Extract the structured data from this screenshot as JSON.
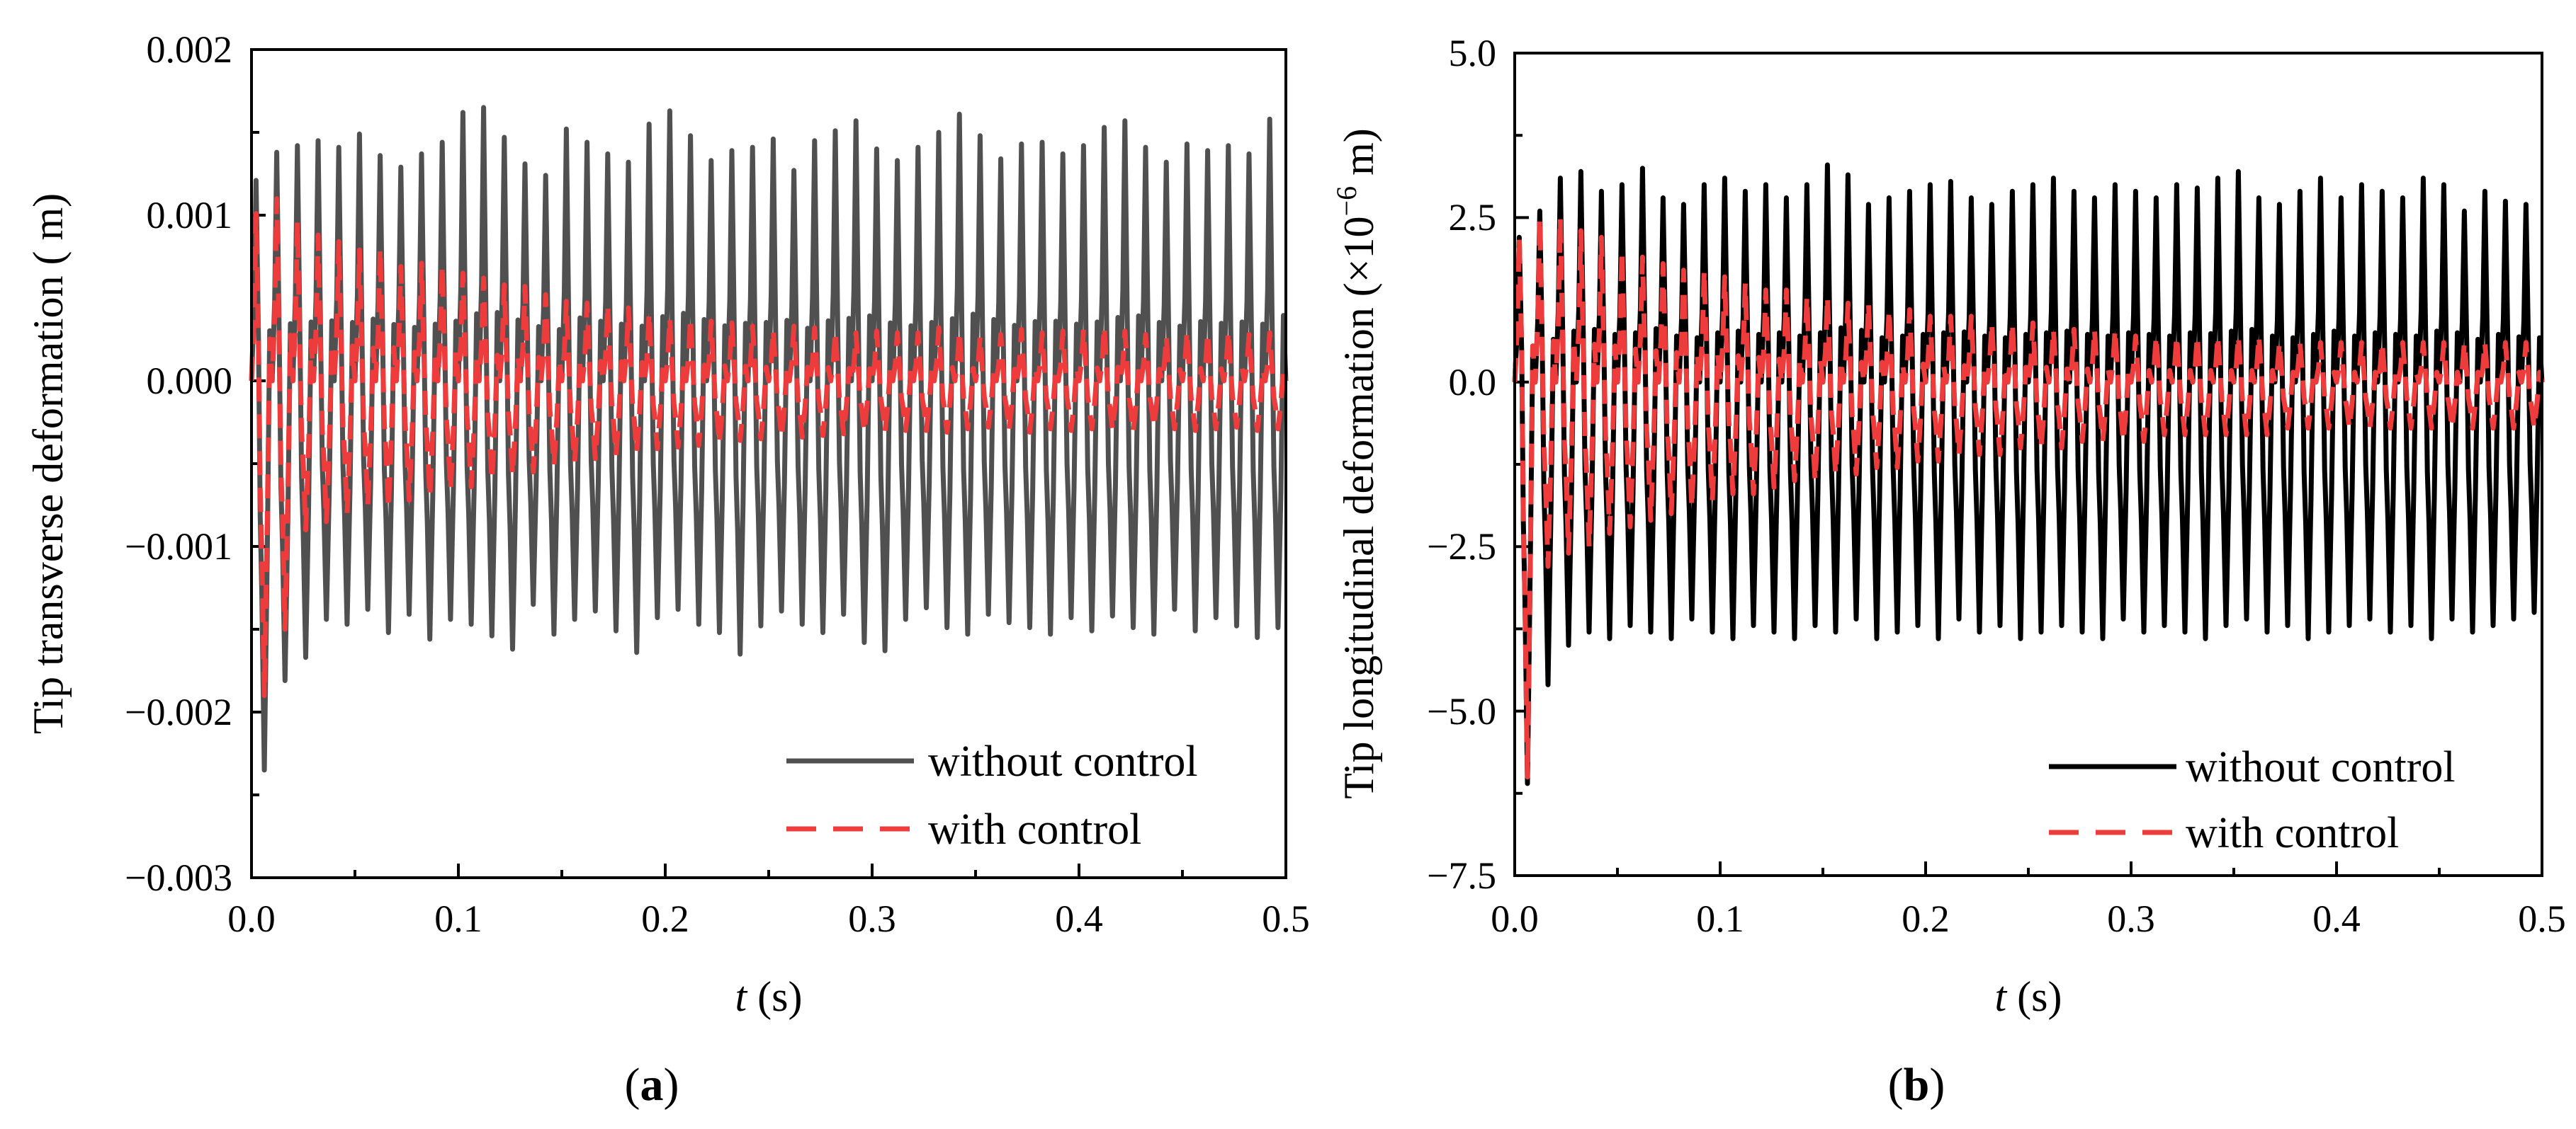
{
  "chart_data": [
    {
      "id": "a",
      "type": "line",
      "panel_label": {
        "open": "(",
        "letter": "a",
        "close": ")"
      },
      "xlabel": {
        "italic": "t",
        "unit": " (s)"
      },
      "ylabel": "Tip transverse deformation ( m)",
      "xlim": [
        0.0,
        0.5
      ],
      "ylim": [
        -0.003,
        0.002
      ],
      "xticks": [
        0.0,
        0.1,
        0.2,
        0.3,
        0.4,
        0.5
      ],
      "xtick_labels": [
        "0.0",
        "0.1",
        "0.2",
        "0.3",
        "0.4",
        "0.5"
      ],
      "yticks": [
        -0.003,
        -0.002,
        -0.001,
        0.0,
        0.001,
        0.002
      ],
      "ytick_labels": [
        "−0.003",
        "−0.002",
        "−0.001",
        "0.000",
        "0.001",
        "0.002"
      ],
      "legend_position": "bottom-right",
      "series": [
        {
          "name": "without control",
          "color": "#505050",
          "style": "solid",
          "peaks": [
            0.00121,
            0.00138,
            0.00142,
            0.00145,
            0.00141,
            0.00149,
            0.00136,
            0.00129,
            0.00137,
            0.00144,
            0.00162,
            0.00165,
            0.00147,
            0.00131,
            0.00124,
            0.00152,
            0.00144,
            0.00137,
            0.00132,
            0.00155,
            0.00163,
            0.00148,
            0.00133,
            0.00139,
            0.00141,
            0.00146,
            0.00127,
            0.00145,
            0.00151,
            0.00157,
            0.0014,
            0.00133,
            0.00141,
            0.0015,
            0.00161,
            0.00148,
            0.00134,
            0.00143,
            0.00144,
            0.00137,
            0.00142,
            0.00153,
            0.00157,
            0.00141,
            0.00132,
            0.00143,
            0.00139,
            0.00142,
            0.00137,
            0.00158
          ],
          "troughs": [
            -0.00235,
            -0.00181,
            -0.00167,
            -0.00144,
            -0.00147,
            -0.00138,
            -0.00152,
            -0.00141,
            -0.00156,
            -0.00144,
            -0.00147,
            -0.00154,
            -0.00162,
            -0.00135,
            -0.00153,
            -0.00144,
            -0.00139,
            -0.00151,
            -0.00164,
            -0.00143,
            -0.00138,
            -0.00147,
            -0.00152,
            -0.00165,
            -0.00148,
            -0.00139,
            -0.00147,
            -0.00152,
            -0.00141,
            -0.00158,
            -0.00163,
            -0.00144,
            -0.00137,
            -0.00149,
            -0.00153,
            -0.00141,
            -0.00146,
            -0.00149,
            -0.00153,
            -0.00143,
            -0.00151,
            -0.00142,
            -0.00149,
            -0.00153,
            -0.00138,
            -0.00151,
            -0.00143,
            -0.00148,
            -0.00155,
            -0.00149
          ]
        },
        {
          "name": "with control",
          "color": "#ee3b3b",
          "style": "dashed",
          "peaks": [
            0.00101,
            0.0011,
            0.00096,
            0.00088,
            0.00084,
            0.00079,
            0.0008,
            0.00069,
            0.00071,
            0.0007,
            0.00065,
            0.00062,
            0.00058,
            0.00057,
            0.00052,
            0.00048,
            0.00047,
            0.00046,
            0.00044,
            0.00041,
            0.00038,
            0.00038,
            0.00036,
            0.00035,
            0.00033,
            0.00031,
            0.00033,
            0.00032,
            0.0003,
            0.00029,
            0.0003,
            0.00029,
            0.00029,
            0.00032,
            0.0003,
            0.00027,
            0.00028,
            0.00031,
            0.00029,
            0.0003,
            0.00031,
            0.00033,
            0.0003,
            0.00028,
            0.00027,
            0.0003,
            0.00029,
            0.0003,
            0.00028,
            0.00029
          ],
          "troughs": [
            -0.0019,
            -0.0015,
            -0.0009,
            -0.00085,
            -0.0008,
            -0.00075,
            -0.00077,
            -0.00072,
            -0.0007,
            -0.00066,
            -0.00064,
            -0.0006,
            -0.00057,
            -0.00055,
            -0.00051,
            -0.00049,
            -0.00047,
            -0.00045,
            -0.00043,
            -0.00041,
            -0.0004,
            -0.00039,
            -0.00038,
            -0.00036,
            -0.00035,
            -0.00034,
            -0.00034,
            -0.00033,
            -0.00032,
            -0.00031,
            -0.00031,
            -0.0003,
            -0.0003,
            -0.00031,
            -0.00029,
            -0.00028,
            -0.0003,
            -0.00031,
            -0.00029,
            -0.0003,
            -0.00029,
            -0.0003,
            -0.00031,
            -0.00028,
            -0.00029,
            -0.0003,
            -0.00029,
            -0.00028,
            -0.0003,
            -0.00029
          ]
        }
      ]
    },
    {
      "id": "b",
      "type": "line",
      "panel_label": {
        "open": "(",
        "letter": "b",
        "close": ")"
      },
      "xlabel": {
        "italic": "t",
        "unit": " (s)"
      },
      "ylabel": {
        "main": "Tip longitudinal deformation  (×10",
        "exp": "−6",
        "tail": " m)"
      },
      "xlim": [
        0.0,
        0.5
      ],
      "ylim": [
        -7.5,
        5.0
      ],
      "xticks": [
        0.0,
        0.1,
        0.2,
        0.3,
        0.4,
        0.5
      ],
      "xtick_labels": [
        "0.0",
        "0.1",
        "0.2",
        "0.3",
        "0.4",
        "0.5"
      ],
      "yticks": [
        -7.5,
        -5.0,
        -2.5,
        0.0,
        2.5,
        5.0
      ],
      "ytick_labels": [
        "−7.5",
        "−5.0",
        "−2.5",
        "0.0",
        "2.5",
        "5.0"
      ],
      "legend_position": "bottom-right",
      "series": [
        {
          "name": "without control",
          "color": "#000000",
          "style": "solid",
          "peaks": [
            2.2,
            2.6,
            3.1,
            3.2,
            2.9,
            3.0,
            3.25,
            2.8,
            2.7,
            3.0,
            3.1,
            2.9,
            3.0,
            2.8,
            3.0,
            3.3,
            3.15,
            2.7,
            2.8,
            2.9,
            3.0,
            3.05,
            2.8,
            2.7,
            2.9,
            3.0,
            3.1,
            2.9,
            2.8,
            3.0,
            2.9,
            2.8,
            3.0,
            2.95,
            3.1,
            3.2,
            2.8,
            2.7,
            2.9,
            3.1,
            2.8,
            3.0,
            2.9,
            2.8,
            3.1,
            3.0,
            2.6,
            2.9,
            2.75,
            2.7
          ],
          "troughs": [
            -6.1,
            -4.6,
            -4.0,
            -3.8,
            -3.9,
            -3.7,
            -3.8,
            -3.9,
            -3.6,
            -3.8,
            -3.9,
            -3.7,
            -3.8,
            -3.9,
            -3.7,
            -3.8,
            -3.6,
            -3.9,
            -3.8,
            -3.7,
            -3.9,
            -3.6,
            -3.8,
            -3.7,
            -3.9,
            -3.8,
            -3.7,
            -3.8,
            -3.9,
            -3.6,
            -3.8,
            -3.7,
            -3.8,
            -3.9,
            -3.7,
            -3.6,
            -3.8,
            -3.7,
            -3.9,
            -3.8,
            -3.7,
            -3.6,
            -3.8,
            -3.7,
            -3.9,
            -3.6,
            -3.8,
            -3.7,
            -3.6,
            -3.5
          ]
        },
        {
          "name": "with control",
          "color": "#ee3b3b",
          "style": "dashed",
          "peaks": [
            2.2,
            2.5,
            2.5,
            2.3,
            2.2,
            2.0,
            1.9,
            1.8,
            1.7,
            1.7,
            1.6,
            1.5,
            1.4,
            1.4,
            1.3,
            1.3,
            1.2,
            1.2,
            1.1,
            1.1,
            1.0,
            1.0,
            1.0,
            0.9,
            0.9,
            0.9,
            0.8,
            0.8,
            0.8,
            0.8,
            0.7,
            0.7,
            0.7,
            0.7,
            0.7,
            0.7,
            0.7,
            0.6,
            0.6,
            0.6,
            0.6,
            0.6,
            0.6,
            0.6,
            0.6,
            0.6,
            0.6,
            0.6,
            0.6,
            0.6
          ],
          "troughs": [
            -6.0,
            -2.8,
            -2.6,
            -2.5,
            -2.3,
            -2.2,
            -2.1,
            -2.0,
            -1.9,
            -1.8,
            -1.7,
            -1.7,
            -1.6,
            -1.5,
            -1.5,
            -1.4,
            -1.4,
            -1.3,
            -1.3,
            -1.2,
            -1.2,
            -1.1,
            -1.1,
            -1.1,
            -1.0,
            -1.0,
            -1.0,
            -0.9,
            -0.9,
            -0.9,
            -0.9,
            -0.8,
            -0.8,
            -0.8,
            -0.8,
            -0.8,
            -0.8,
            -0.7,
            -0.7,
            -0.7,
            -0.7,
            -0.7,
            -0.7,
            -0.7,
            -0.7,
            -0.7,
            -0.7,
            -0.7,
            -0.7,
            -0.7
          ]
        }
      ]
    }
  ]
}
